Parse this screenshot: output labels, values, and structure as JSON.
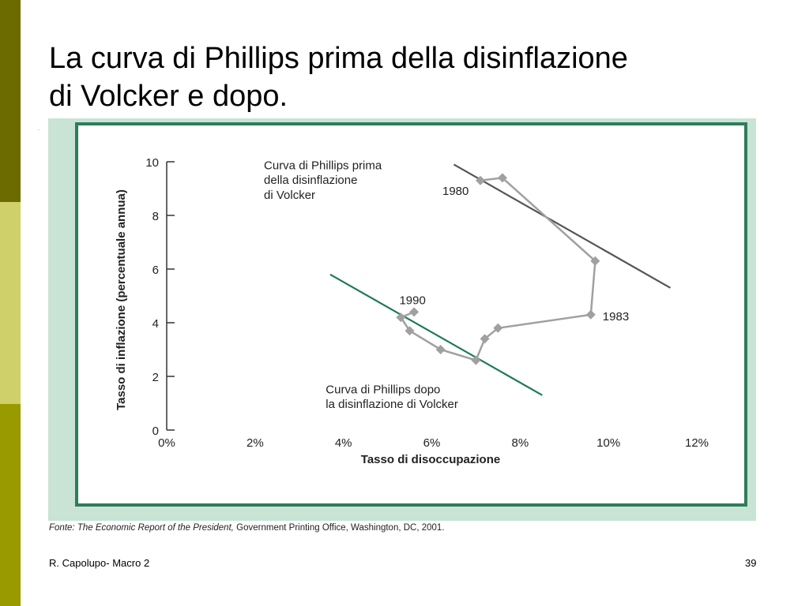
{
  "slide": {
    "title_line1": "La curva di Phillips prima della disinflazione",
    "title_line2": "di Volcker e dopo.",
    "footer_left": "R. Capolupo- Macro 2",
    "footer_right": "39"
  },
  "source": {
    "label": "Fonte:",
    "publication": "The Economic Report of the President,",
    "rest": "Government Printing Office, Washington, DC, 2001."
  },
  "colors": {
    "sidebar_dark": "#6b6b00",
    "sidebar_light": "#cfd06a",
    "sidebar_mid": "#999900",
    "frame": "#2e7d5b",
    "frame_bg": "#c9e3d4",
    "before_line": "#555555",
    "after_line": "#1f7a55",
    "path": "#a0a0a0"
  },
  "chart_data": {
    "type": "scatter",
    "xlabel": "Tasso di disoccupazione",
    "ylabel": "Tasso di inflazione (percentuale annua)",
    "xlim": [
      0,
      12
    ],
    "ylim": [
      0,
      10
    ],
    "x_ticks": [
      0,
      2,
      4,
      6,
      8,
      10,
      12
    ],
    "x_tick_labels": [
      "0%",
      "2%",
      "4%",
      "6%",
      "8%",
      "10%",
      "12%"
    ],
    "y_ticks": [
      0,
      2,
      4,
      6,
      8,
      10
    ],
    "y_tick_labels": [
      "0",
      "2",
      "4",
      "6",
      "8",
      "10"
    ],
    "grid": false,
    "path_points": [
      {
        "x": 7.1,
        "y": 9.3
      },
      {
        "x": 7.6,
        "y": 9.4
      },
      {
        "x": 9.7,
        "y": 6.3
      },
      {
        "x": 9.6,
        "y": 4.3
      },
      {
        "x": 7.5,
        "y": 3.8
      },
      {
        "x": 7.2,
        "y": 3.4
      },
      {
        "x": 7.0,
        "y": 2.6
      },
      {
        "x": 6.2,
        "y": 3.0
      },
      {
        "x": 5.5,
        "y": 3.7
      },
      {
        "x": 5.3,
        "y": 4.2
      },
      {
        "x": 5.6,
        "y": 4.4
      }
    ],
    "lines": [
      {
        "name": "Curva di Phillips prima della disinflazione di Volcker",
        "x": [
          6.5,
          11.4
        ],
        "y": [
          9.9,
          5.3
        ]
      },
      {
        "name": "Curva di Phillips dopo la disinflazione di Volcker",
        "x": [
          3.7,
          8.5
        ],
        "y": [
          5.8,
          1.3
        ]
      }
    ],
    "annotations": [
      {
        "text": "1980",
        "x": 7.1,
        "y": 9.3
      },
      {
        "text": "1983",
        "x": 9.6,
        "y": 4.3
      },
      {
        "text": "1990",
        "x": 5.6,
        "y": 4.4
      },
      {
        "text": "Curva di Phillips prima",
        "x": 2.2,
        "y": 9.9
      },
      {
        "text": "della disinflazione",
        "x": 2.2,
        "y": 9.35
      },
      {
        "text": "di Volcker",
        "x": 2.2,
        "y": 8.8
      },
      {
        "text": "Curva di Phillips dopo",
        "x": 3.6,
        "y": 1.55
      },
      {
        "text": "la disinflazione di Volcker",
        "x": 3.6,
        "y": 1.0
      }
    ]
  }
}
